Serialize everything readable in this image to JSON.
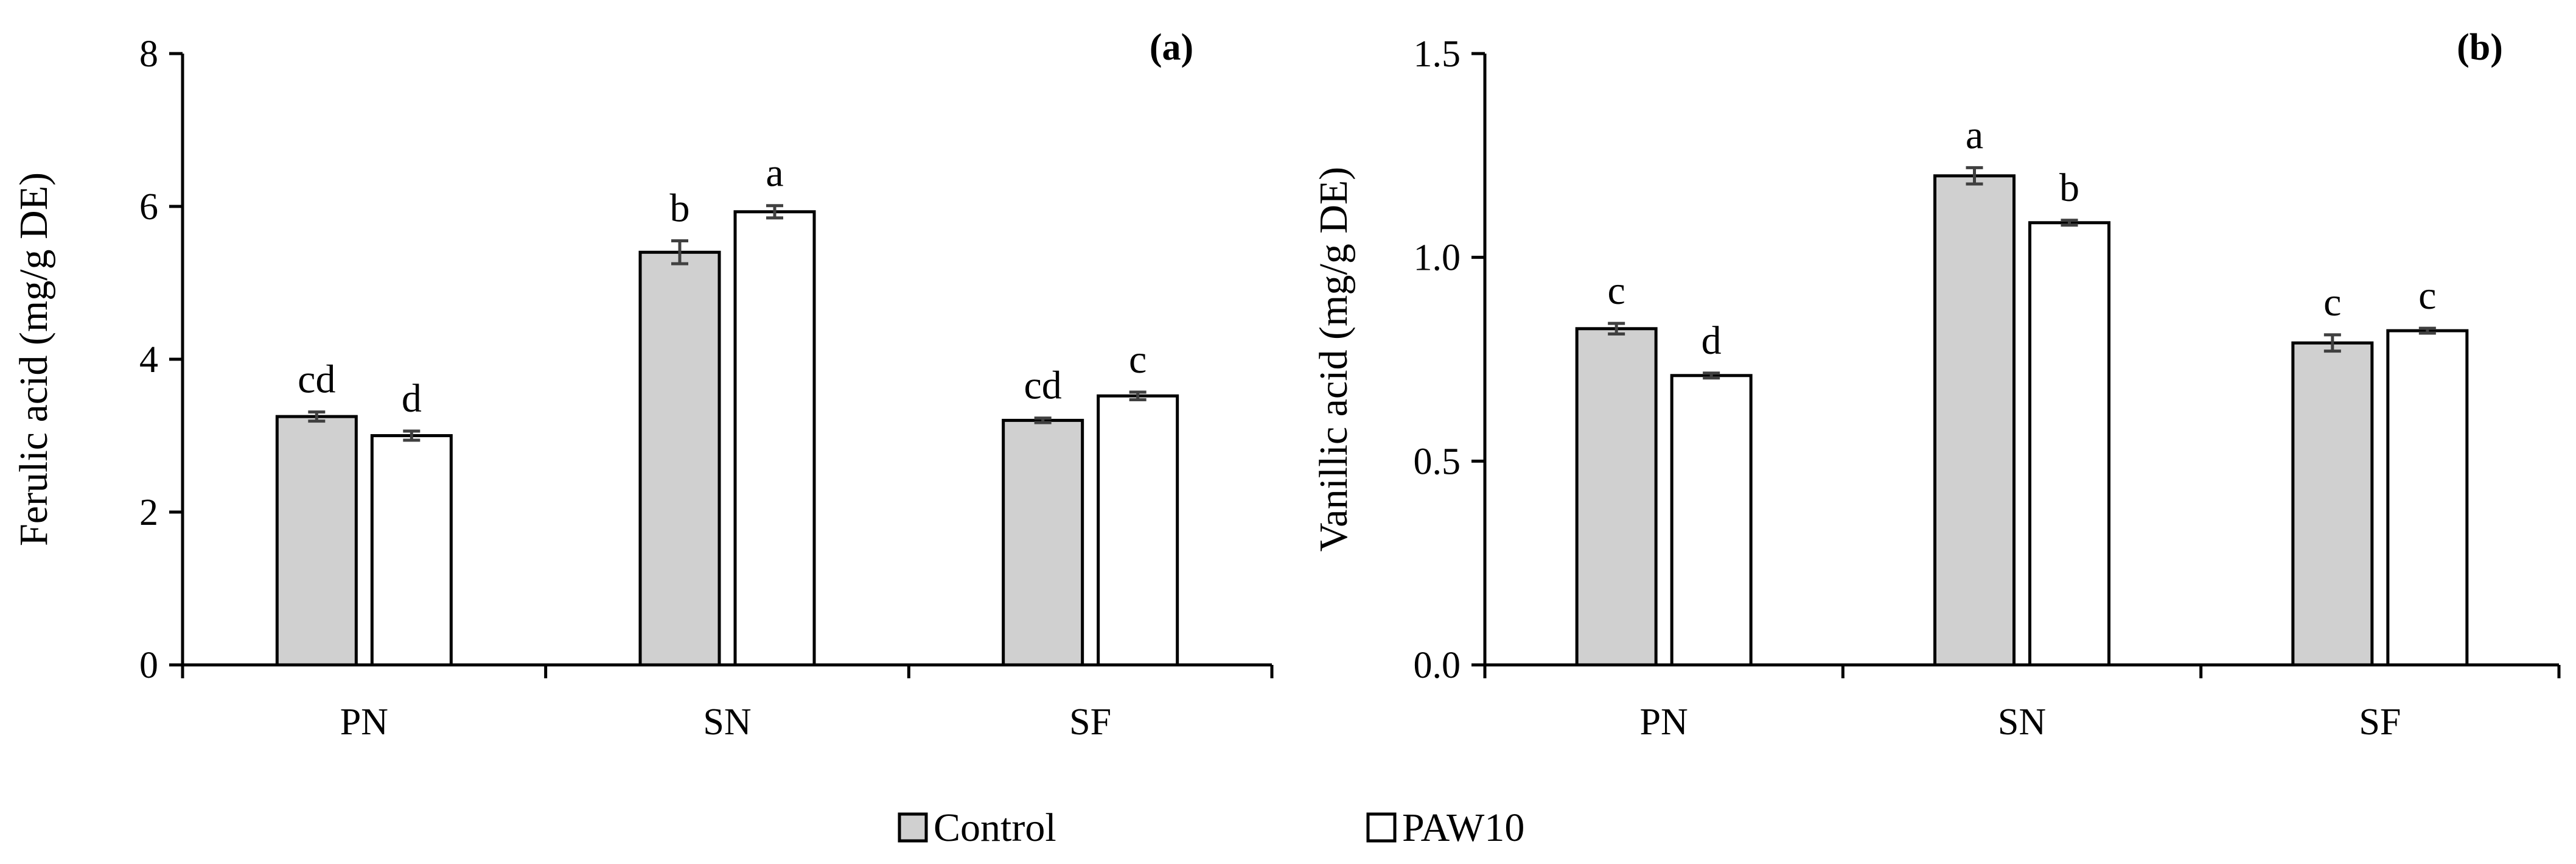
{
  "colors": {
    "control": "#d0d0d0",
    "paw10": "#ffffff",
    "stroke": "#000000",
    "error": "#404040"
  },
  "legend": {
    "items": [
      {
        "key": "control",
        "label": "Control"
      },
      {
        "key": "paw10",
        "label": "PAW10"
      }
    ]
  },
  "chart_data": [
    {
      "type": "bar",
      "panel_label": "(a)",
      "ylabel": "Ferulic acid (mg/g DE)",
      "xlabel": "",
      "ylim": [
        0,
        8
      ],
      "yticks": [
        0,
        2,
        4,
        6,
        8
      ],
      "ytick_labels": [
        "0",
        "2",
        "4",
        "6",
        "8"
      ],
      "categories": [
        "PN",
        "SN",
        "SF"
      ],
      "series": [
        {
          "name": "Control",
          "key": "control",
          "values": [
            3.25,
            5.4,
            3.2
          ],
          "errors": [
            0.06,
            0.15,
            0.03
          ],
          "letters": [
            "cd",
            "b",
            "cd"
          ]
        },
        {
          "name": "PAW10",
          "key": "paw10",
          "values": [
            3.0,
            5.93,
            3.52
          ],
          "errors": [
            0.06,
            0.08,
            0.05
          ],
          "letters": [
            "d",
            "a",
            "c"
          ]
        }
      ],
      "grid": false,
      "legend": "bottom-center"
    },
    {
      "type": "bar",
      "panel_label": "(b)",
      "ylabel": "Vanillic acid (mg/g DE)",
      "xlabel": "",
      "ylim": [
        0,
        1.5
      ],
      "yticks": [
        0,
        0.5,
        1.0,
        1.5
      ],
      "ytick_labels": [
        "0.0",
        "0.5",
        "1.0",
        "1.5"
      ],
      "categories": [
        "PN",
        "SN",
        "SF"
      ],
      "series": [
        {
          "name": "Control",
          "key": "control",
          "values": [
            0.825,
            1.2,
            0.79
          ],
          "errors": [
            0.013,
            0.02,
            0.02
          ],
          "letters": [
            "c",
            "a",
            "c"
          ]
        },
        {
          "name": "PAW10",
          "key": "paw10",
          "values": [
            0.71,
            1.085,
            0.82
          ],
          "errors": [
            0.006,
            0.006,
            0.006
          ],
          "letters": [
            "d",
            "b",
            "c"
          ]
        }
      ],
      "grid": false,
      "legend": "bottom-center"
    }
  ]
}
